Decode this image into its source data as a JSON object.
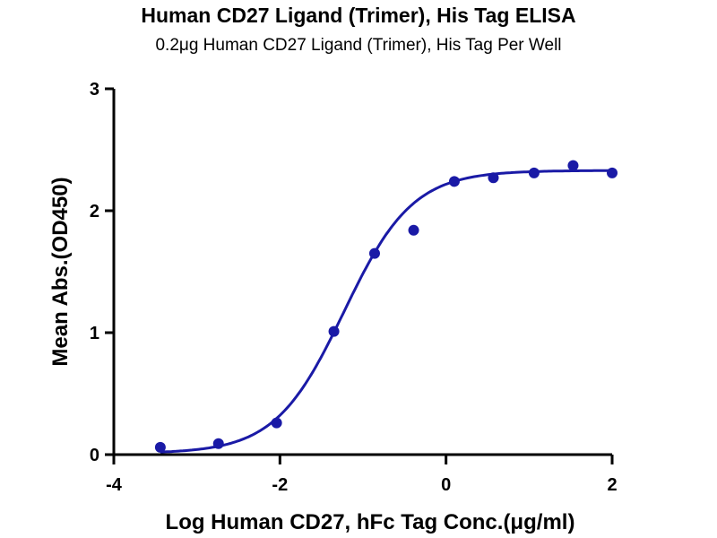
{
  "chart_data": {
    "type": "scatter",
    "title": "Human CD27 Ligand (Trimer), His Tag ELISA",
    "subtitle": "0.2μg Human CD27 Ligand (Trimer), His Tag Per Well",
    "xlabel": "Log Human CD27, hFc Tag Conc.(μg/ml)",
    "ylabel": "Mean Abs.(OD450)",
    "xlim": [
      -4,
      2
    ],
    "ylim": [
      0,
      3
    ],
    "xticks": [
      "-4",
      "-2",
      "0",
      "2"
    ],
    "xtick_values": [
      -4,
      -2,
      0,
      2
    ],
    "yticks": [
      "0",
      "1",
      "2",
      "3"
    ],
    "ytick_values": [
      0,
      1,
      2,
      3
    ],
    "grid": false,
    "series": [
      {
        "name": "data",
        "color": "#1a1aa6",
        "x": [
          -3.44,
          -2.74,
          -2.04,
          -1.35,
          -0.86,
          -0.39,
          0.1,
          0.57,
          1.06,
          1.53,
          2.0
        ],
        "y": [
          0.06,
          0.09,
          0.26,
          1.01,
          1.65,
          1.84,
          2.24,
          2.27,
          2.31,
          2.37,
          2.31
        ]
      }
    ],
    "fit": {
      "model": "4PL",
      "bottom": 0.01,
      "top": 2.33,
      "logEC50": -1.23,
      "hill": 1.05,
      "color": "#1a1aa6"
    }
  }
}
